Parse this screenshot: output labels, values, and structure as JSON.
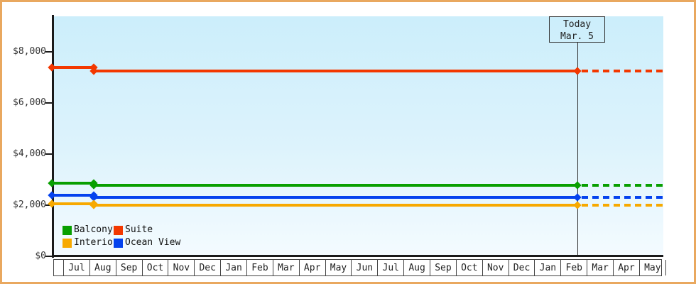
{
  "frame": {
    "border_color": "#e9a85f",
    "background": "#ffffff"
  },
  "chart_data": {
    "type": "line",
    "title": "",
    "description": "Cruise cabin price history by category; flat stepped price lines with a drop in early August, dashed projection after today",
    "y_axis": {
      "ticks": [
        {
          "label": "$8,000",
          "value": 8000
        },
        {
          "label": "$6,000",
          "value": 6000
        },
        {
          "label": "$4,000",
          "value": 4000
        },
        {
          "label": "$2,000",
          "value": 2000
        },
        {
          "label": "$0",
          "value": 0
        }
      ],
      "ylim": [
        0,
        9390
      ],
      "grid": false
    },
    "x_axis": {
      "month_labels": [
        "Jul",
        "Aug",
        "Sep",
        "Oct",
        "Nov",
        "Dec",
        "Jan",
        "Feb",
        "Mar",
        "Apr",
        "May",
        "Jun",
        "Jul",
        "Aug",
        "Sep",
        "Oct",
        "Nov",
        "Dec",
        "Jan",
        "Feb",
        "Mar",
        "Apr",
        "May"
      ]
    },
    "today_marker": {
      "line1": "Today",
      "line2": "Mar. 5",
      "x_frac": 0.8586
    },
    "series": [
      {
        "name": "Suite",
        "color": "#f33800",
        "points": [
          {
            "x_frac": -0.002,
            "price": 7400
          },
          {
            "x_frac": 0.0663,
            "price": 7250
          },
          {
            "x_frac": 0.8586,
            "price": 7250
          }
        ],
        "projected_price": 7250
      },
      {
        "name": "Balcony",
        "color": "#089f00",
        "points": [
          {
            "x_frac": -0.002,
            "price": 2860
          },
          {
            "x_frac": 0.0663,
            "price": 2780
          },
          {
            "x_frac": 0.8586,
            "price": 2780
          }
        ],
        "projected_price": 2780
      },
      {
        "name": "Ocean View",
        "color": "#0442ee",
        "points": [
          {
            "x_frac": -0.002,
            "price": 2375
          },
          {
            "x_frac": 0.0663,
            "price": 2300
          },
          {
            "x_frac": 0.8586,
            "price": 2300
          }
        ],
        "projected_price": 2300
      },
      {
        "name": "Interior",
        "color": "#f7a900",
        "points": [
          {
            "x_frac": -0.002,
            "price": 2050
          },
          {
            "x_frac": 0.0663,
            "price": 1990
          },
          {
            "x_frac": 0.8586,
            "price": 1990
          }
        ],
        "projected_price": 1990
      }
    ],
    "legend": {
      "position": "bottom-left-inside",
      "items": [
        {
          "label": "Balcony",
          "color": "#089f00"
        },
        {
          "label": "Suite",
          "color": "#f33800"
        },
        {
          "label": "Interior",
          "color": "#f7a900"
        },
        {
          "label": "Ocean View",
          "color": "#0442ee"
        }
      ]
    }
  }
}
